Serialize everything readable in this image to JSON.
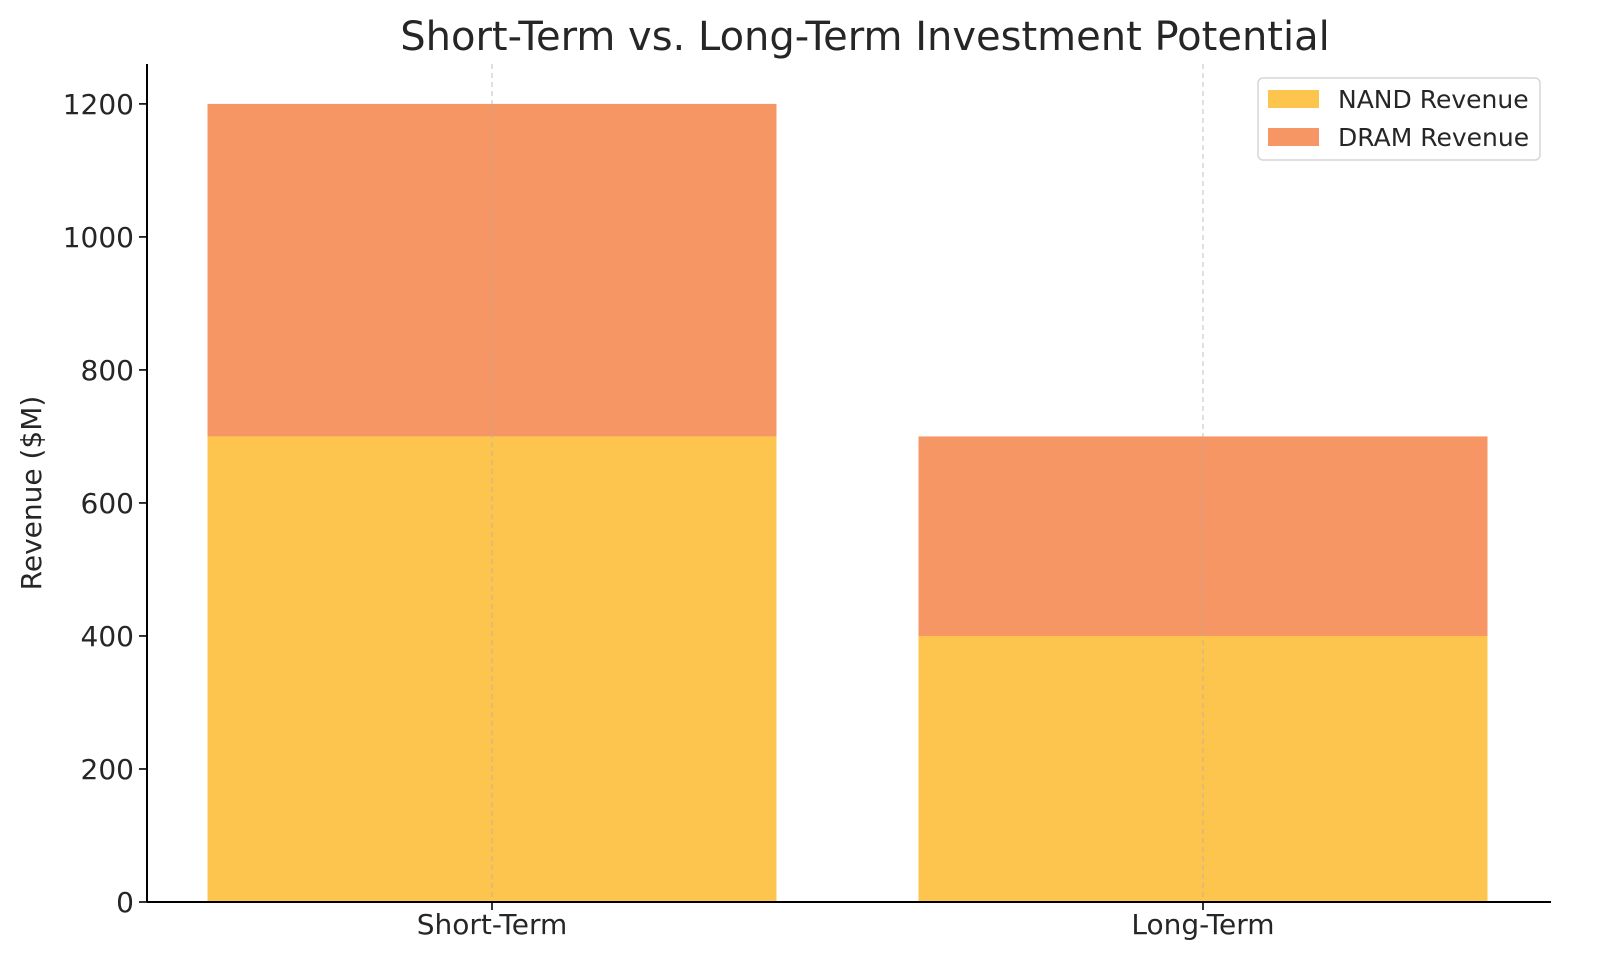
{
  "chart_data": {
    "type": "bar",
    "stacked": true,
    "title": "Short-Term vs. Long-Term Investment Potential",
    "xlabel": "",
    "ylabel": "Revenue ($M)",
    "categories": [
      "Short-Term",
      "Long-Term"
    ],
    "series": [
      {
        "name": "NAND Revenue",
        "values": [
          700,
          400
        ],
        "color": "#FDC54D"
      },
      {
        "name": "DRAM Revenue",
        "values": [
          500,
          300
        ],
        "color": "#F59664"
      }
    ],
    "ylim": [
      0,
      1260
    ],
    "yticks": [
      0,
      200,
      400,
      600,
      800,
      1000,
      1200
    ],
    "grid": "vertical dashed at categories",
    "legend_position": "top-right"
  }
}
